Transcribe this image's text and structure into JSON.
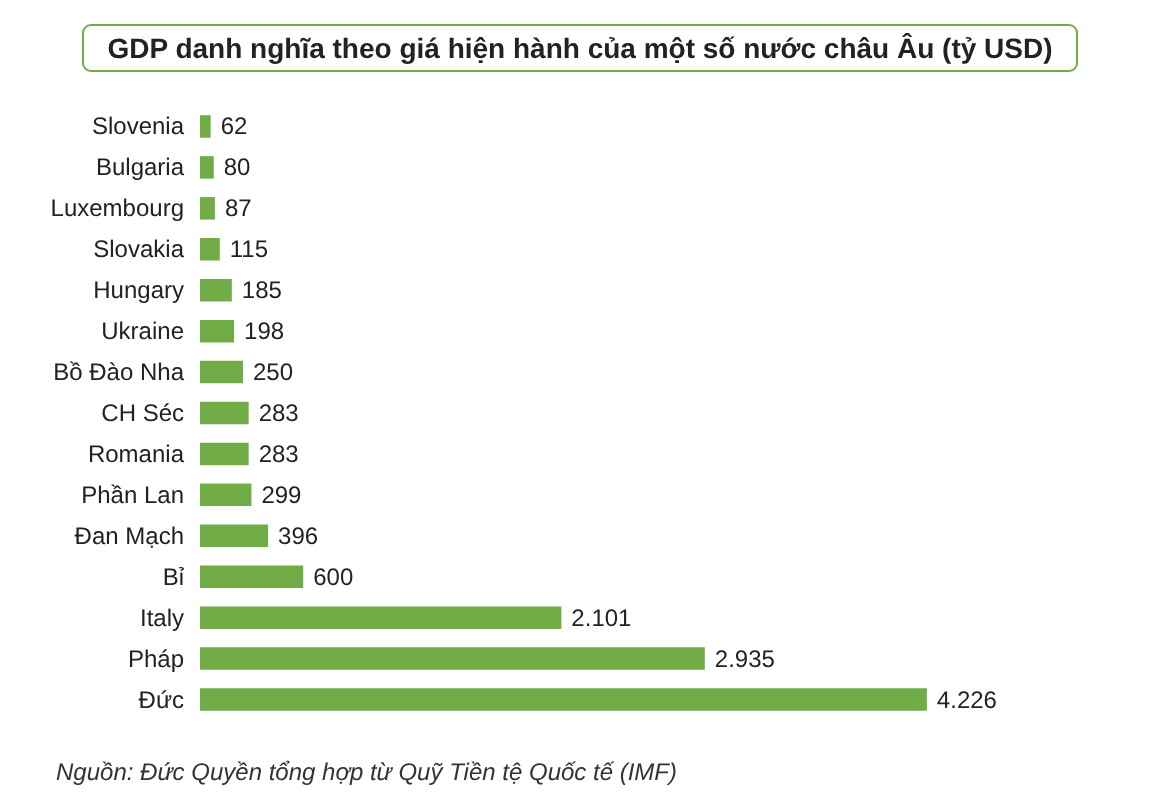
{
  "chart_data": {
    "type": "bar",
    "orientation": "horizontal",
    "title": "GDP danh nghĩa theo giá hiện hành của một số nước châu Âu (tỷ USD)",
    "categories": [
      "Slovenia",
      "Bulgaria",
      "Luxembourg",
      "Slovakia",
      "Hungary",
      "Ukraine",
      "Bồ Đào Nha",
      "CH Séc",
      "Romania",
      "Phần Lan",
      "Đan Mạch",
      "Bỉ",
      "Italy",
      "Pháp",
      "Đức"
    ],
    "values": [
      62,
      80,
      87,
      115,
      185,
      198,
      250,
      283,
      283,
      299,
      396,
      600,
      2101,
      2935,
      4226
    ],
    "value_labels": [
      "62",
      "80",
      "87",
      "115",
      "185",
      "198",
      "250",
      "283",
      "283",
      "299",
      "396",
      "600",
      "2.101",
      "2.935",
      "4.226"
    ],
    "color": "#70ad47",
    "annotations": [
      "Nguồn: Đức Quyền tổng hợp từ Quỹ Tiền tệ Quốc tế (IMF)"
    ]
  }
}
